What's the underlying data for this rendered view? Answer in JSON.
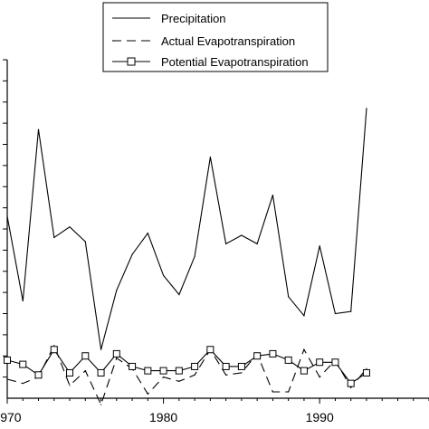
{
  "chart_data": {
    "type": "line",
    "xlim": [
      1970,
      1997
    ],
    "ylim": [
      0,
      16
    ],
    "x_ticks": [
      1970,
      1980,
      1990
    ],
    "x_tick_labels": [
      "1970",
      "1980",
      "1990"
    ],
    "grid": false,
    "legend_position": "top",
    "series": [
      {
        "name": "Precipitation",
        "style": "solid",
        "marker": "none",
        "x": [
          1970,
          1971,
          1972,
          1973,
          1974,
          1975,
          1976,
          1977,
          1978,
          1979,
          1980,
          1981,
          1982,
          1983,
          1984,
          1985,
          1986,
          1987,
          1988,
          1989,
          1990,
          1991,
          1992,
          1993
        ],
        "y": [
          8.6,
          4.6,
          12.7,
          7.6,
          8.1,
          7.4,
          2.3,
          5.1,
          6.8,
          7.8,
          5.8,
          4.9,
          6.7,
          11.4,
          7.3,
          7.7,
          7.3,
          9.6,
          4.8,
          3.9,
          7.2,
          4.0,
          4.1,
          13.7
        ]
      },
      {
        "name": "Actual Evapotranspiration",
        "style": "dashed",
        "marker": "none",
        "x": [
          1970,
          1971,
          1972,
          1973,
          1974,
          1975,
          1976,
          1977,
          1978,
          1979,
          1980,
          1981,
          1982,
          1983,
          1984,
          1985,
          1986,
          1987,
          1988,
          1989,
          1990,
          1991,
          1992,
          1993
        ],
        "y": [
          0.9,
          0.7,
          1.0,
          2.5,
          0.6,
          1.3,
          -0.3,
          1.9,
          1.4,
          0.2,
          1.0,
          0.8,
          1.1,
          2.3,
          1.1,
          1.2,
          2.1,
          0.3,
          0.3,
          2.3,
          1.0,
          1.8,
          0.5,
          1.4
        ]
      },
      {
        "name": "Potential Evapotranspiration",
        "style": "solid",
        "marker": "square",
        "x": [
          1970,
          1971,
          1972,
          1973,
          1974,
          1975,
          1976,
          1977,
          1978,
          1979,
          1980,
          1981,
          1982,
          1983,
          1984,
          1985,
          1986,
          1987,
          1988,
          1989,
          1990,
          1991,
          1992,
          1993
        ],
        "y": [
          1.8,
          1.6,
          1.1,
          2.3,
          1.2,
          2.0,
          1.2,
          2.1,
          1.5,
          1.3,
          1.3,
          1.3,
          1.5,
          2.3,
          1.5,
          1.5,
          2.0,
          2.1,
          1.8,
          1.3,
          1.7,
          1.7,
          0.7,
          1.2
        ]
      }
    ]
  }
}
